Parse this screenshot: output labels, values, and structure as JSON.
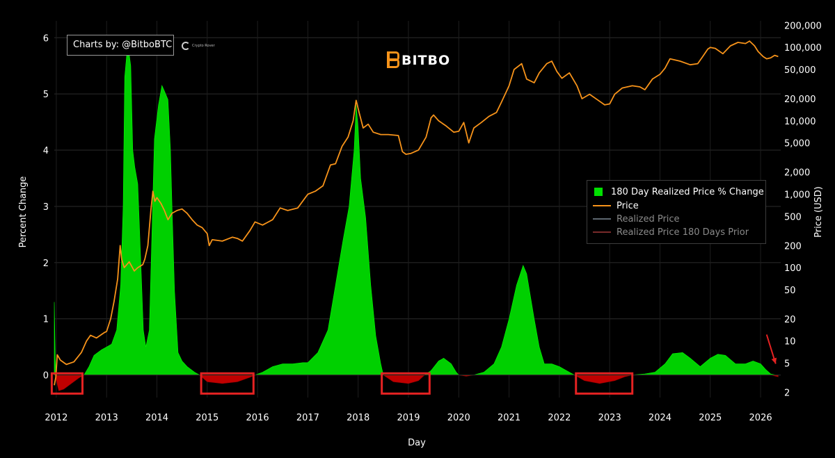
{
  "credit": {
    "text": "Charts by: @BitboBTC",
    "logo_text": "Crypto Rover"
  },
  "brand": {
    "text": "BITBO",
    "color": "#f7931a"
  },
  "chart_data": {
    "type": "area",
    "title": "",
    "xlabel": "Day",
    "ylabel_left": "Percent Change",
    "ylabel_right": "Price (USD)",
    "x_ticks": [
      "2012",
      "2013",
      "2014",
      "2015",
      "2016",
      "2017",
      "2018",
      "2019",
      "2020",
      "2021",
      "2022",
      "2023",
      "2024",
      "2025",
      "2026"
    ],
    "x_range": [
      2011.96,
      2026.4
    ],
    "y_left_ticks": [
      "0",
      "1",
      "2",
      "3",
      "4",
      "5",
      "6"
    ],
    "y_left_range": [
      -0.4,
      6.3
    ],
    "y_right_ticks": [
      "2",
      "5",
      "10",
      "20",
      "50",
      "100",
      "200",
      "500",
      "1,000",
      "2,000",
      "5,000",
      "10,000",
      "20,000",
      "50,000",
      "100,000",
      "200,000"
    ],
    "y_right_scale": "log",
    "y_right_range": [
      1.7,
      230000
    ],
    "grid": true,
    "legend_position": "right",
    "legend": [
      {
        "label": "180 Day Realized Price % Change",
        "color": "#00e000",
        "kind": "square"
      },
      {
        "label": "Price",
        "color": "#f7931a",
        "kind": "line"
      },
      {
        "label": "Realized Price",
        "color": "#5d6770",
        "kind": "line"
      },
      {
        "label": "Realized Price 180 Days Prior",
        "color": "#7a2a2a",
        "kind": "line"
      }
    ],
    "series": [
      {
        "name": "180 Day Realized Price % Change",
        "axis": "left",
        "color_positive": "#00d000",
        "color_negative": "#c00000",
        "points": [
          [
            2011.96,
            1.3
          ],
          [
            2011.98,
            0.3
          ],
          [
            2012.0,
            -0.1
          ],
          [
            2012.05,
            -0.28
          ],
          [
            2012.15,
            -0.25
          ],
          [
            2012.3,
            -0.15
          ],
          [
            2012.45,
            -0.05
          ],
          [
            2012.55,
            0.0
          ],
          [
            2012.65,
            0.15
          ],
          [
            2012.75,
            0.35
          ],
          [
            2012.9,
            0.45
          ],
          [
            2013.0,
            0.5
          ],
          [
            2013.1,
            0.55
          ],
          [
            2013.2,
            0.8
          ],
          [
            2013.28,
            1.6
          ],
          [
            2013.33,
            3.0
          ],
          [
            2013.36,
            5.3
          ],
          [
            2013.42,
            5.9
          ],
          [
            2013.48,
            5.5
          ],
          [
            2013.52,
            4.0
          ],
          [
            2013.56,
            3.7
          ],
          [
            2013.62,
            3.4
          ],
          [
            2013.68,
            2.0
          ],
          [
            2013.73,
            0.8
          ],
          [
            2013.78,
            0.5
          ],
          [
            2013.85,
            0.8
          ],
          [
            2013.9,
            2.5
          ],
          [
            2013.95,
            4.2
          ],
          [
            2014.03,
            4.8
          ],
          [
            2014.1,
            5.15
          ],
          [
            2014.15,
            5.05
          ],
          [
            2014.22,
            4.9
          ],
          [
            2014.27,
            4.0
          ],
          [
            2014.3,
            3.0
          ],
          [
            2014.35,
            1.5
          ],
          [
            2014.42,
            0.4
          ],
          [
            2014.5,
            0.25
          ],
          [
            2014.6,
            0.15
          ],
          [
            2014.75,
            0.05
          ],
          [
            2014.85,
            0.0
          ],
          [
            2015.0,
            -0.12
          ],
          [
            2015.3,
            -0.15
          ],
          [
            2015.6,
            -0.12
          ],
          [
            2015.85,
            -0.04
          ],
          [
            2015.95,
            0.0
          ],
          [
            2016.1,
            0.05
          ],
          [
            2016.3,
            0.15
          ],
          [
            2016.5,
            0.2
          ],
          [
            2016.7,
            0.2
          ],
          [
            2016.9,
            0.22
          ],
          [
            2017.0,
            0.22
          ],
          [
            2017.2,
            0.4
          ],
          [
            2017.4,
            0.8
          ],
          [
            2017.55,
            1.6
          ],
          [
            2017.7,
            2.4
          ],
          [
            2017.82,
            3.0
          ],
          [
            2017.92,
            4.0
          ],
          [
            2017.96,
            4.8
          ],
          [
            2018.0,
            4.4
          ],
          [
            2018.05,
            3.5
          ],
          [
            2018.15,
            2.8
          ],
          [
            2018.25,
            1.6
          ],
          [
            2018.35,
            0.7
          ],
          [
            2018.45,
            0.2
          ],
          [
            2018.5,
            0.0
          ],
          [
            2018.7,
            -0.12
          ],
          [
            2019.0,
            -0.15
          ],
          [
            2019.2,
            -0.1
          ],
          [
            2019.32,
            0.0
          ],
          [
            2019.45,
            0.08
          ],
          [
            2019.6,
            0.25
          ],
          [
            2019.7,
            0.3
          ],
          [
            2019.85,
            0.2
          ],
          [
            2019.95,
            0.05
          ],
          [
            2020.0,
            0.0
          ],
          [
            2020.15,
            -0.02
          ],
          [
            2020.3,
            0.0
          ],
          [
            2020.5,
            0.05
          ],
          [
            2020.7,
            0.2
          ],
          [
            2020.85,
            0.5
          ],
          [
            2021.0,
            1.0
          ],
          [
            2021.15,
            1.6
          ],
          [
            2021.28,
            1.95
          ],
          [
            2021.35,
            1.8
          ],
          [
            2021.5,
            1.0
          ],
          [
            2021.6,
            0.5
          ],
          [
            2021.7,
            0.2
          ],
          [
            2021.85,
            0.2
          ],
          [
            2022.0,
            0.15
          ],
          [
            2022.2,
            0.05
          ],
          [
            2022.3,
            0.0
          ],
          [
            2022.5,
            -0.1
          ],
          [
            2022.8,
            -0.15
          ],
          [
            2023.1,
            -0.1
          ],
          [
            2023.3,
            -0.03
          ],
          [
            2023.45,
            0.0
          ],
          [
            2023.7,
            0.02
          ],
          [
            2023.9,
            0.05
          ],
          [
            2024.1,
            0.2
          ],
          [
            2024.25,
            0.38
          ],
          [
            2024.45,
            0.4
          ],
          [
            2024.6,
            0.3
          ],
          [
            2024.8,
            0.15
          ],
          [
            2025.0,
            0.3
          ],
          [
            2025.15,
            0.37
          ],
          [
            2025.3,
            0.35
          ],
          [
            2025.5,
            0.2
          ],
          [
            2025.7,
            0.2
          ],
          [
            2025.85,
            0.25
          ],
          [
            2026.0,
            0.2
          ],
          [
            2026.1,
            0.1
          ],
          [
            2026.2,
            0.02
          ],
          [
            2026.3,
            -0.02
          ],
          [
            2026.35,
            -0.03
          ]
        ]
      },
      {
        "name": "Price",
        "axis": "right",
        "color": "#f7931a",
        "points": [
          [
            2011.96,
            2.5
          ],
          [
            2011.99,
            3.2
          ],
          [
            2012.02,
            6.5
          ],
          [
            2012.08,
            5.5
          ],
          [
            2012.2,
            4.8
          ],
          [
            2012.35,
            5.2
          ],
          [
            2012.5,
            7
          ],
          [
            2012.6,
            10
          ],
          [
            2012.68,
            12
          ],
          [
            2012.8,
            11
          ],
          [
            2012.95,
            13
          ],
          [
            2013.0,
            13.5
          ],
          [
            2013.08,
            20
          ],
          [
            2013.15,
            35
          ],
          [
            2013.22,
            70
          ],
          [
            2013.27,
            200
          ],
          [
            2013.3,
            130
          ],
          [
            2013.35,
            100
          ],
          [
            2013.45,
            120
          ],
          [
            2013.55,
            90
          ],
          [
            2013.62,
            100
          ],
          [
            2013.72,
            110
          ],
          [
            2013.76,
            130
          ],
          [
            2013.82,
            200
          ],
          [
            2013.88,
            600
          ],
          [
            2013.92,
            1100
          ],
          [
            2013.96,
            800
          ],
          [
            2014.0,
            900
          ],
          [
            2014.08,
            750
          ],
          [
            2014.15,
            600
          ],
          [
            2014.22,
            450
          ],
          [
            2014.3,
            550
          ],
          [
            2014.4,
            600
          ],
          [
            2014.5,
            630
          ],
          [
            2014.6,
            550
          ],
          [
            2014.7,
            450
          ],
          [
            2014.8,
            380
          ],
          [
            2014.9,
            350
          ],
          [
            2015.0,
            290
          ],
          [
            2015.04,
            200
          ],
          [
            2015.1,
            240
          ],
          [
            2015.3,
            230
          ],
          [
            2015.5,
            260
          ],
          [
            2015.6,
            250
          ],
          [
            2015.7,
            230
          ],
          [
            2015.85,
            320
          ],
          [
            2015.95,
            420
          ],
          [
            2016.1,
            380
          ],
          [
            2016.3,
            450
          ],
          [
            2016.45,
            650
          ],
          [
            2016.6,
            600
          ],
          [
            2016.8,
            650
          ],
          [
            2016.95,
            900
          ],
          [
            2017.0,
            1000
          ],
          [
            2017.15,
            1100
          ],
          [
            2017.3,
            1300
          ],
          [
            2017.45,
            2500
          ],
          [
            2017.55,
            2600
          ],
          [
            2017.68,
            4500
          ],
          [
            2017.8,
            6000
          ],
          [
            2017.9,
            10000
          ],
          [
            2017.96,
            19000
          ],
          [
            2018.02,
            13000
          ],
          [
            2018.1,
            8000
          ],
          [
            2018.2,
            9000
          ],
          [
            2018.3,
            7000
          ],
          [
            2018.45,
            6500
          ],
          [
            2018.6,
            6500
          ],
          [
            2018.8,
            6300
          ],
          [
            2018.88,
            3800
          ],
          [
            2018.95,
            3500
          ],
          [
            2019.05,
            3600
          ],
          [
            2019.2,
            4000
          ],
          [
            2019.35,
            6000
          ],
          [
            2019.45,
            11000
          ],
          [
            2019.5,
            12000
          ],
          [
            2019.6,
            10000
          ],
          [
            2019.75,
            8500
          ],
          [
            2019.9,
            7000
          ],
          [
            2020.0,
            7200
          ],
          [
            2020.1,
            9500
          ],
          [
            2020.2,
            5000
          ],
          [
            2020.3,
            8000
          ],
          [
            2020.45,
            9500
          ],
          [
            2020.6,
            11500
          ],
          [
            2020.75,
            13000
          ],
          [
            2020.85,
            18000
          ],
          [
            2021.0,
            30000
          ],
          [
            2021.1,
            50000
          ],
          [
            2021.25,
            60000
          ],
          [
            2021.35,
            37000
          ],
          [
            2021.5,
            33000
          ],
          [
            2021.6,
            45000
          ],
          [
            2021.75,
            60000
          ],
          [
            2021.85,
            65000
          ],
          [
            2021.95,
            47000
          ],
          [
            2022.05,
            38000
          ],
          [
            2022.2,
            45000
          ],
          [
            2022.35,
            30000
          ],
          [
            2022.45,
            20000
          ],
          [
            2022.6,
            23000
          ],
          [
            2022.75,
            19500
          ],
          [
            2022.9,
            16500
          ],
          [
            2023.0,
            17000
          ],
          [
            2023.1,
            23000
          ],
          [
            2023.25,
            28000
          ],
          [
            2023.45,
            30000
          ],
          [
            2023.6,
            29000
          ],
          [
            2023.7,
            26500
          ],
          [
            2023.85,
            37000
          ],
          [
            2024.0,
            43000
          ],
          [
            2024.1,
            52000
          ],
          [
            2024.2,
            70000
          ],
          [
            2024.4,
            65000
          ],
          [
            2024.6,
            58000
          ],
          [
            2024.75,
            60000
          ],
          [
            2024.85,
            75000
          ],
          [
            2024.95,
            95000
          ],
          [
            2025.0,
            100000
          ],
          [
            2025.1,
            97000
          ],
          [
            2025.25,
            82000
          ],
          [
            2025.4,
            105000
          ],
          [
            2025.55,
            117000
          ],
          [
            2025.7,
            113000
          ],
          [
            2025.78,
            122000
          ],
          [
            2025.88,
            105000
          ],
          [
            2025.95,
            88000
          ],
          [
            2026.05,
            75000
          ],
          [
            2026.12,
            70000
          ],
          [
            2026.2,
            72000
          ],
          [
            2026.28,
            78000
          ],
          [
            2026.35,
            75000
          ]
        ]
      }
    ],
    "highlight_boxes": [
      {
        "x_range": [
          2011.91,
          2012.52
        ],
        "y_range": [
          -0.33,
          0.03
        ],
        "color": "#e52222"
      },
      {
        "x_range": [
          2014.88,
          2015.92
        ],
        "y_range": [
          -0.33,
          0.03
        ],
        "color": "#e52222"
      },
      {
        "x_range": [
          2018.47,
          2019.42
        ],
        "y_range": [
          -0.33,
          0.03
        ],
        "color": "#e52222"
      },
      {
        "x_range": [
          2022.33,
          2023.45
        ],
        "y_range": [
          -0.33,
          0.03
        ],
        "color": "#e52222"
      }
    ],
    "annotation_arrow": {
      "from": [
        2026.12,
        0.72
      ],
      "to": [
        2026.3,
        0.2
      ],
      "color": "#e52222"
    }
  }
}
